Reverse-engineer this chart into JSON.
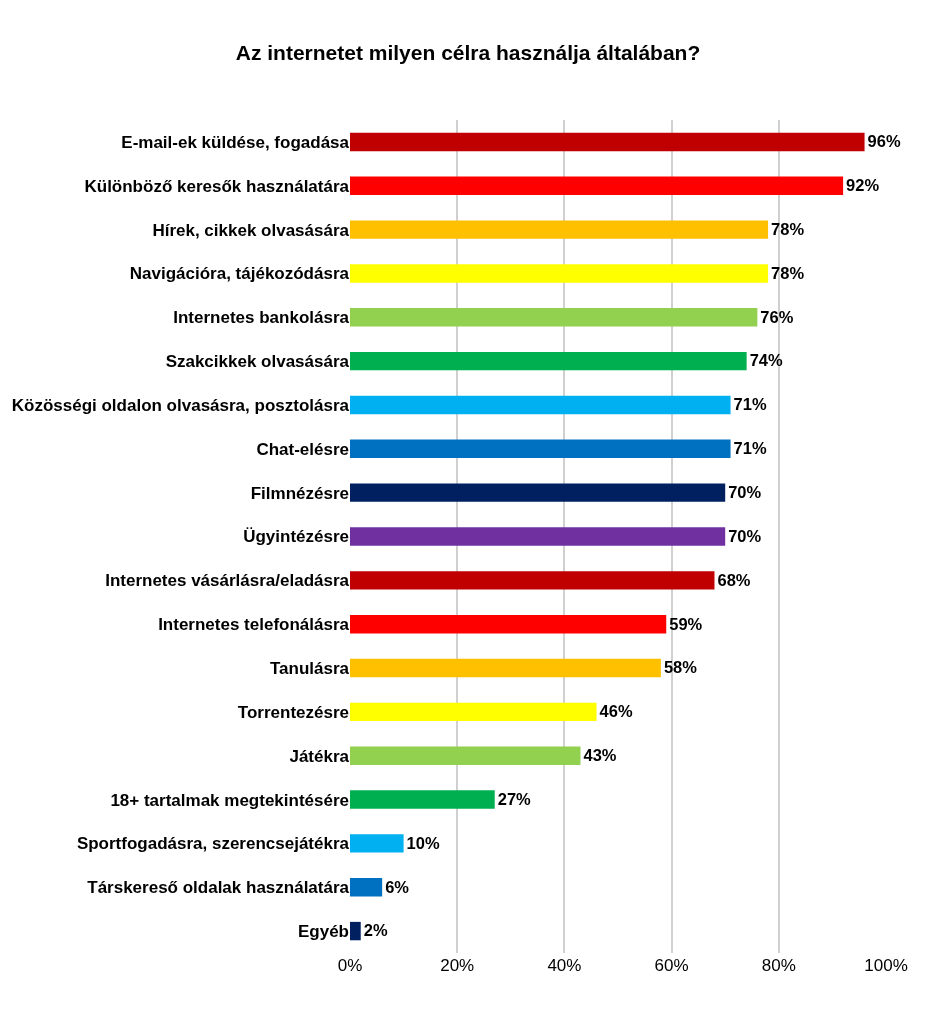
{
  "chart_data": {
    "type": "bar",
    "orientation": "horizontal",
    "title": "Az internetet milyen célra használja általában?",
    "categories": [
      "E-mail-ek küldése, fogadása",
      "Különböző keresők használatára",
      "Hírek, cikkek olvasására",
      "Navigációra, tájékozódásra",
      "Internetes bankolásra",
      "Szakcikkek olvasására",
      "Közösségi oldalon olvasásra, posztolásra",
      "Chat-elésre",
      "Filmnézésre",
      "Ügyintézésre",
      "Internetes vásárlásra/eladásra",
      "Internetes telefonálásra",
      "Tanulásra",
      "Torrentezésre",
      "Játékra",
      "18+ tartalmak megtekintésére",
      "Sportfogadásra, szerencsejátékra",
      "Társkereső oldalak használatára",
      "Egyéb"
    ],
    "values": [
      96,
      92,
      78,
      78,
      76,
      74,
      71,
      71,
      70,
      70,
      68,
      59,
      58,
      46,
      43,
      27,
      10,
      6,
      2
    ],
    "value_labels": [
      "96%",
      "92%",
      "78%",
      "78%",
      "76%",
      "74%",
      "71%",
      "71%",
      "70%",
      "70%",
      "68%",
      "59%",
      "58%",
      "46%",
      "43%",
      "27%",
      "10%",
      "6%",
      "2%"
    ],
    "colors": [
      "#c00000",
      "#ff0000",
      "#ffc000",
      "#ffff00",
      "#92d050",
      "#00b050",
      "#00b0f0",
      "#0070c0",
      "#002060",
      "#7030a0",
      "#c00000",
      "#ff0000",
      "#ffc000",
      "#ffff00",
      "#92d050",
      "#00b050",
      "#00b0f0",
      "#0070c0",
      "#002060"
    ],
    "xlim": [
      0,
      100
    ],
    "xticks": [
      {
        "value": 0,
        "label": "0%"
      },
      {
        "value": 20,
        "label": "20%"
      },
      {
        "value": 40,
        "label": "40%"
      },
      {
        "value": 60,
        "label": "60%"
      },
      {
        "value": 80,
        "label": "80%"
      },
      {
        "value": 100,
        "label": "100%"
      }
    ],
    "grid": "x"
  }
}
